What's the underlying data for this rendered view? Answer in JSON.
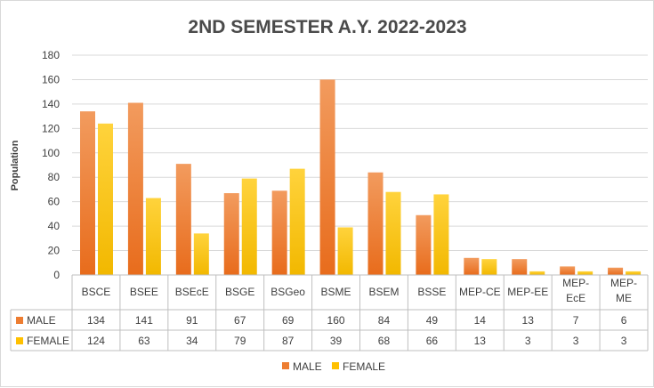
{
  "chart_data": {
    "type": "bar",
    "title": "2ND SEMESTER A.Y. 2022-2023",
    "xlabel": "",
    "ylabel": "Population",
    "ylim": [
      0,
      180
    ],
    "yticks": [
      0,
      20,
      40,
      60,
      80,
      100,
      120,
      140,
      160,
      180
    ],
    "grid": true,
    "legend_position": "bottom",
    "categories": [
      "BSCE",
      "BSEE",
      "BSEcE",
      "BSGE",
      "BSGeo",
      "BSME",
      "BSEM",
      "BSSE",
      "MEP-CE",
      "MEP-EE",
      "MEP-\nEcE",
      "MEP-\nME"
    ],
    "series": [
      {
        "name": "MALE",
        "color": "#ED7D31",
        "values": [
          134,
          141,
          91,
          67,
          69,
          160,
          84,
          49,
          14,
          13,
          7,
          6
        ]
      },
      {
        "name": "FEMALE",
        "color": "#FFC000",
        "values": [
          124,
          63,
          34,
          79,
          87,
          39,
          68,
          66,
          13,
          3,
          3,
          3
        ]
      }
    ],
    "data_table": true
  }
}
